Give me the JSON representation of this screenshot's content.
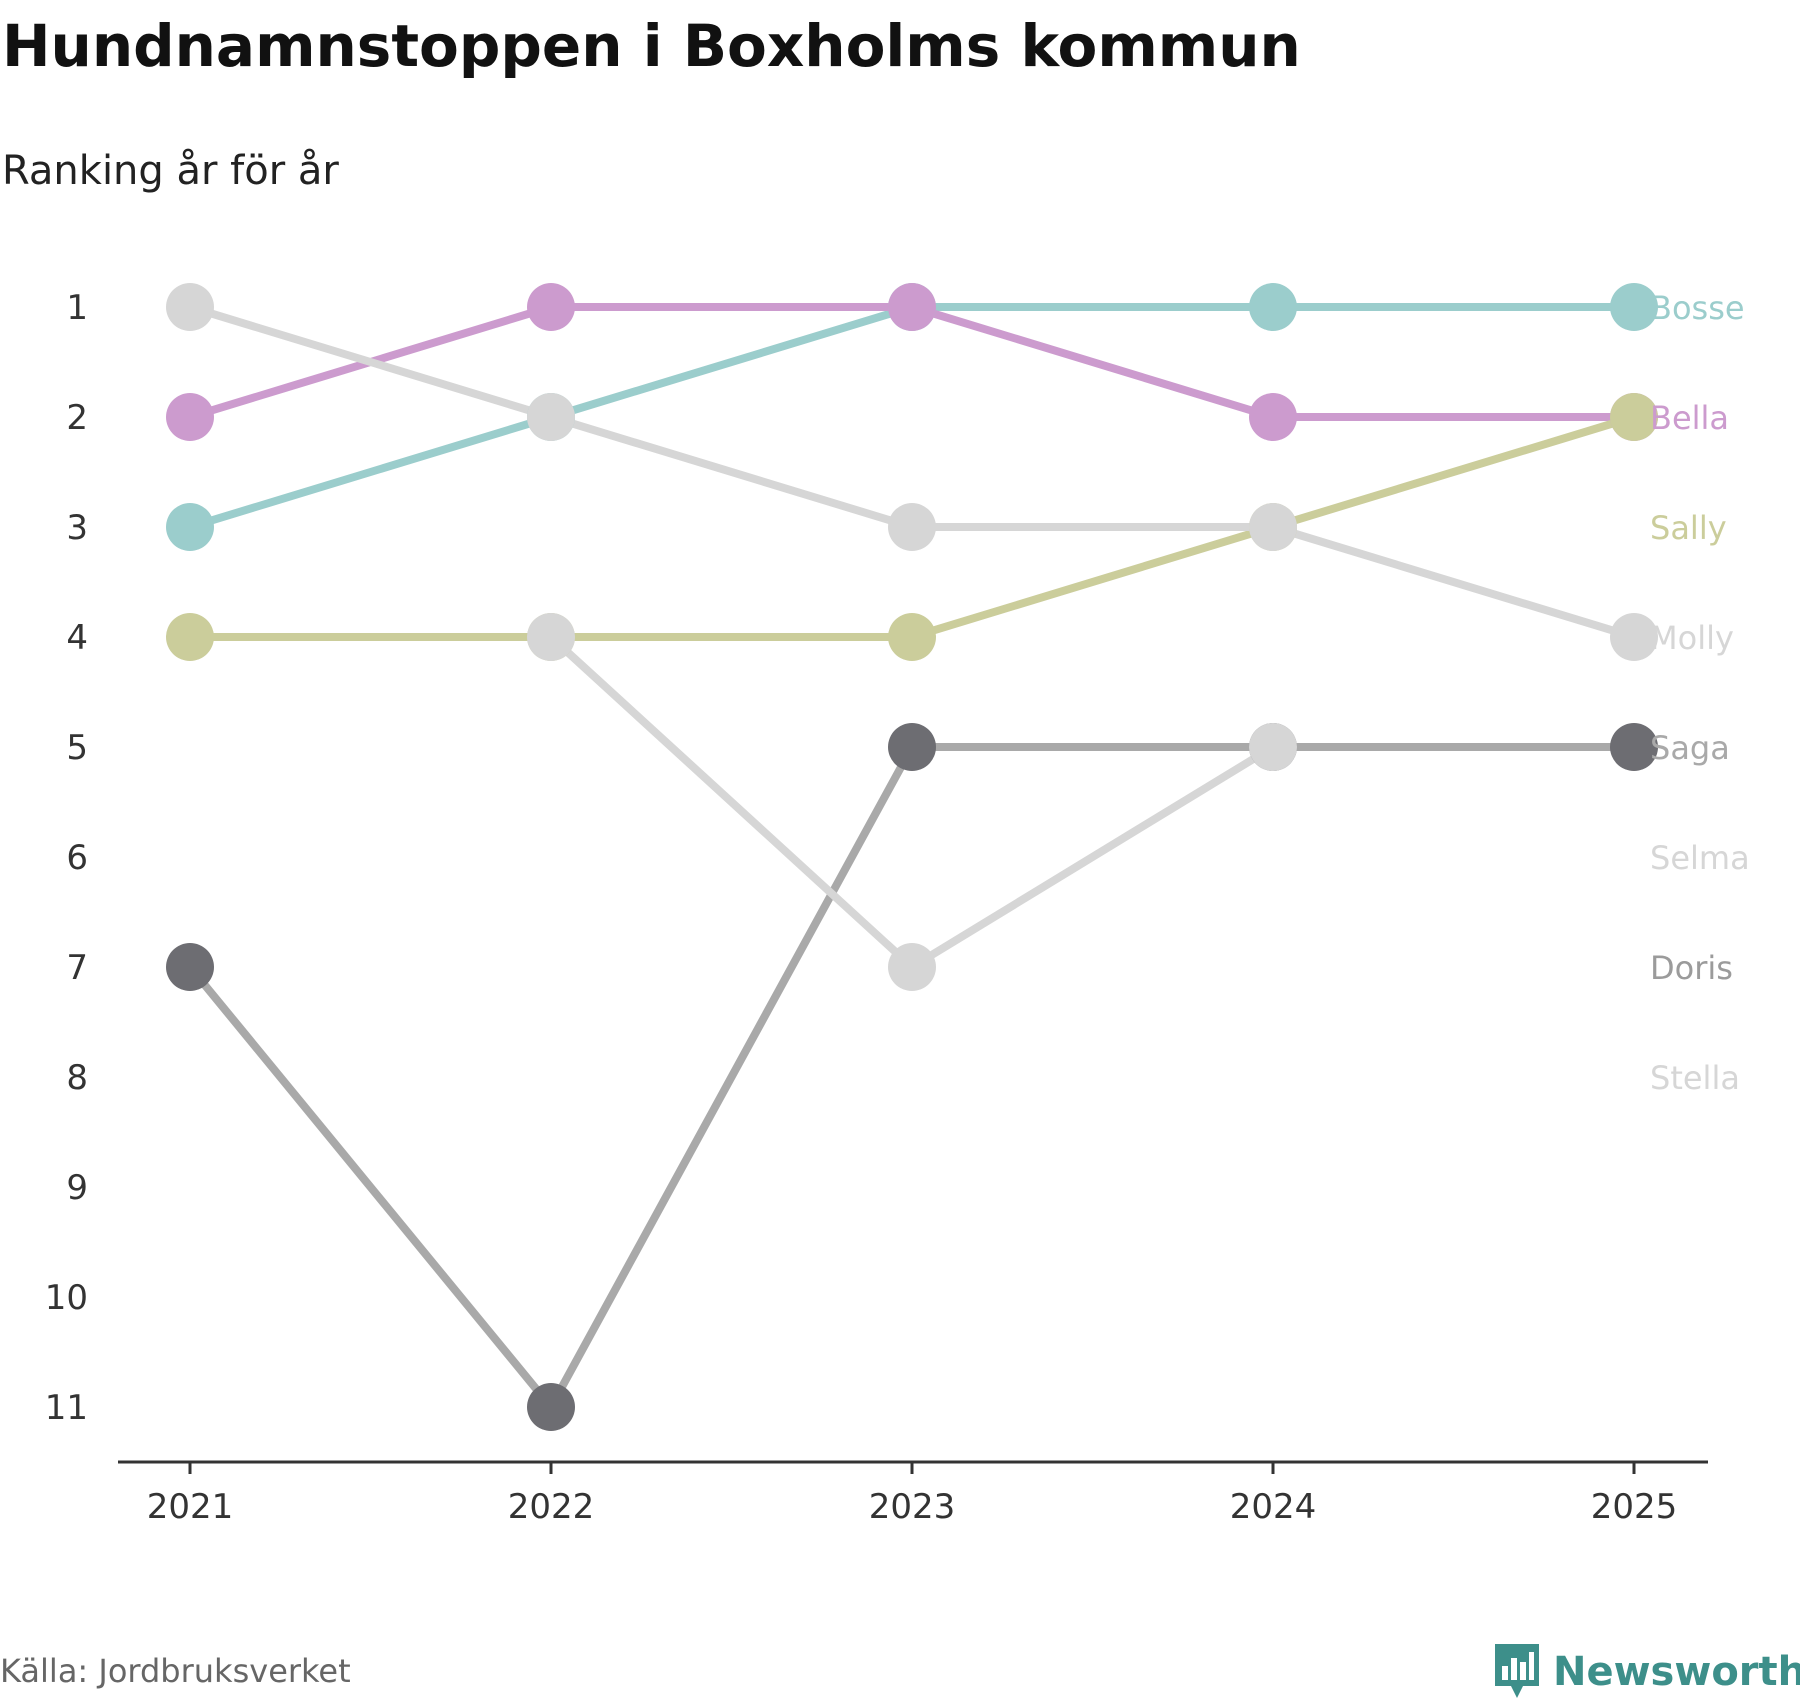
{
  "title": "Hundnamnstoppen i Boxholms kommun",
  "subtitle": "Ranking år för år",
  "source": "Källa: Jordbruksverket",
  "brand": {
    "name": "Newsworthy",
    "color": "#3d8f8a",
    "icon": "bar-chart-speech-bubble-icon"
  },
  "chart_data": {
    "type": "line",
    "x": [
      "2021",
      "2022",
      "2023",
      "2024",
      "2025"
    ],
    "yticks": [
      1,
      2,
      3,
      4,
      5,
      6,
      7,
      8,
      9,
      10,
      11
    ],
    "ylim": [
      1,
      11
    ],
    "y_inverted": true,
    "grid": false,
    "series": [
      {
        "name": "Bosse",
        "color": "#9bcdcc",
        "values": [
          3,
          2,
          1,
          1,
          1
        ]
      },
      {
        "name": "Bella",
        "color": "#cc9bce",
        "values": [
          2,
          1,
          1,
          2,
          2
        ]
      },
      {
        "name": "Sally",
        "color": "#cbcd9b",
        "values": [
          4,
          4,
          4,
          3,
          2
        ]
      },
      {
        "name": "Molly",
        "color": "#d6d6d6",
        "values": [
          1,
          2,
          3,
          3,
          4
        ]
      },
      {
        "name": "Saga",
        "color": "#a9a9a9",
        "dot_color": "#6d6d72",
        "values": [
          7,
          11,
          5,
          5,
          5
        ]
      },
      {
        "name": "Selma",
        "color": "#d6d6d6",
        "values": [
          null,
          null,
          null,
          null,
          null
        ]
      },
      {
        "name": "Doris",
        "color": "#9b9b9b",
        "values": [
          null,
          null,
          null,
          null,
          null
        ]
      },
      {
        "name": "Stella",
        "color": "#d6d6d6",
        "values": [
          null,
          4,
          7,
          5,
          null
        ]
      }
    ]
  }
}
